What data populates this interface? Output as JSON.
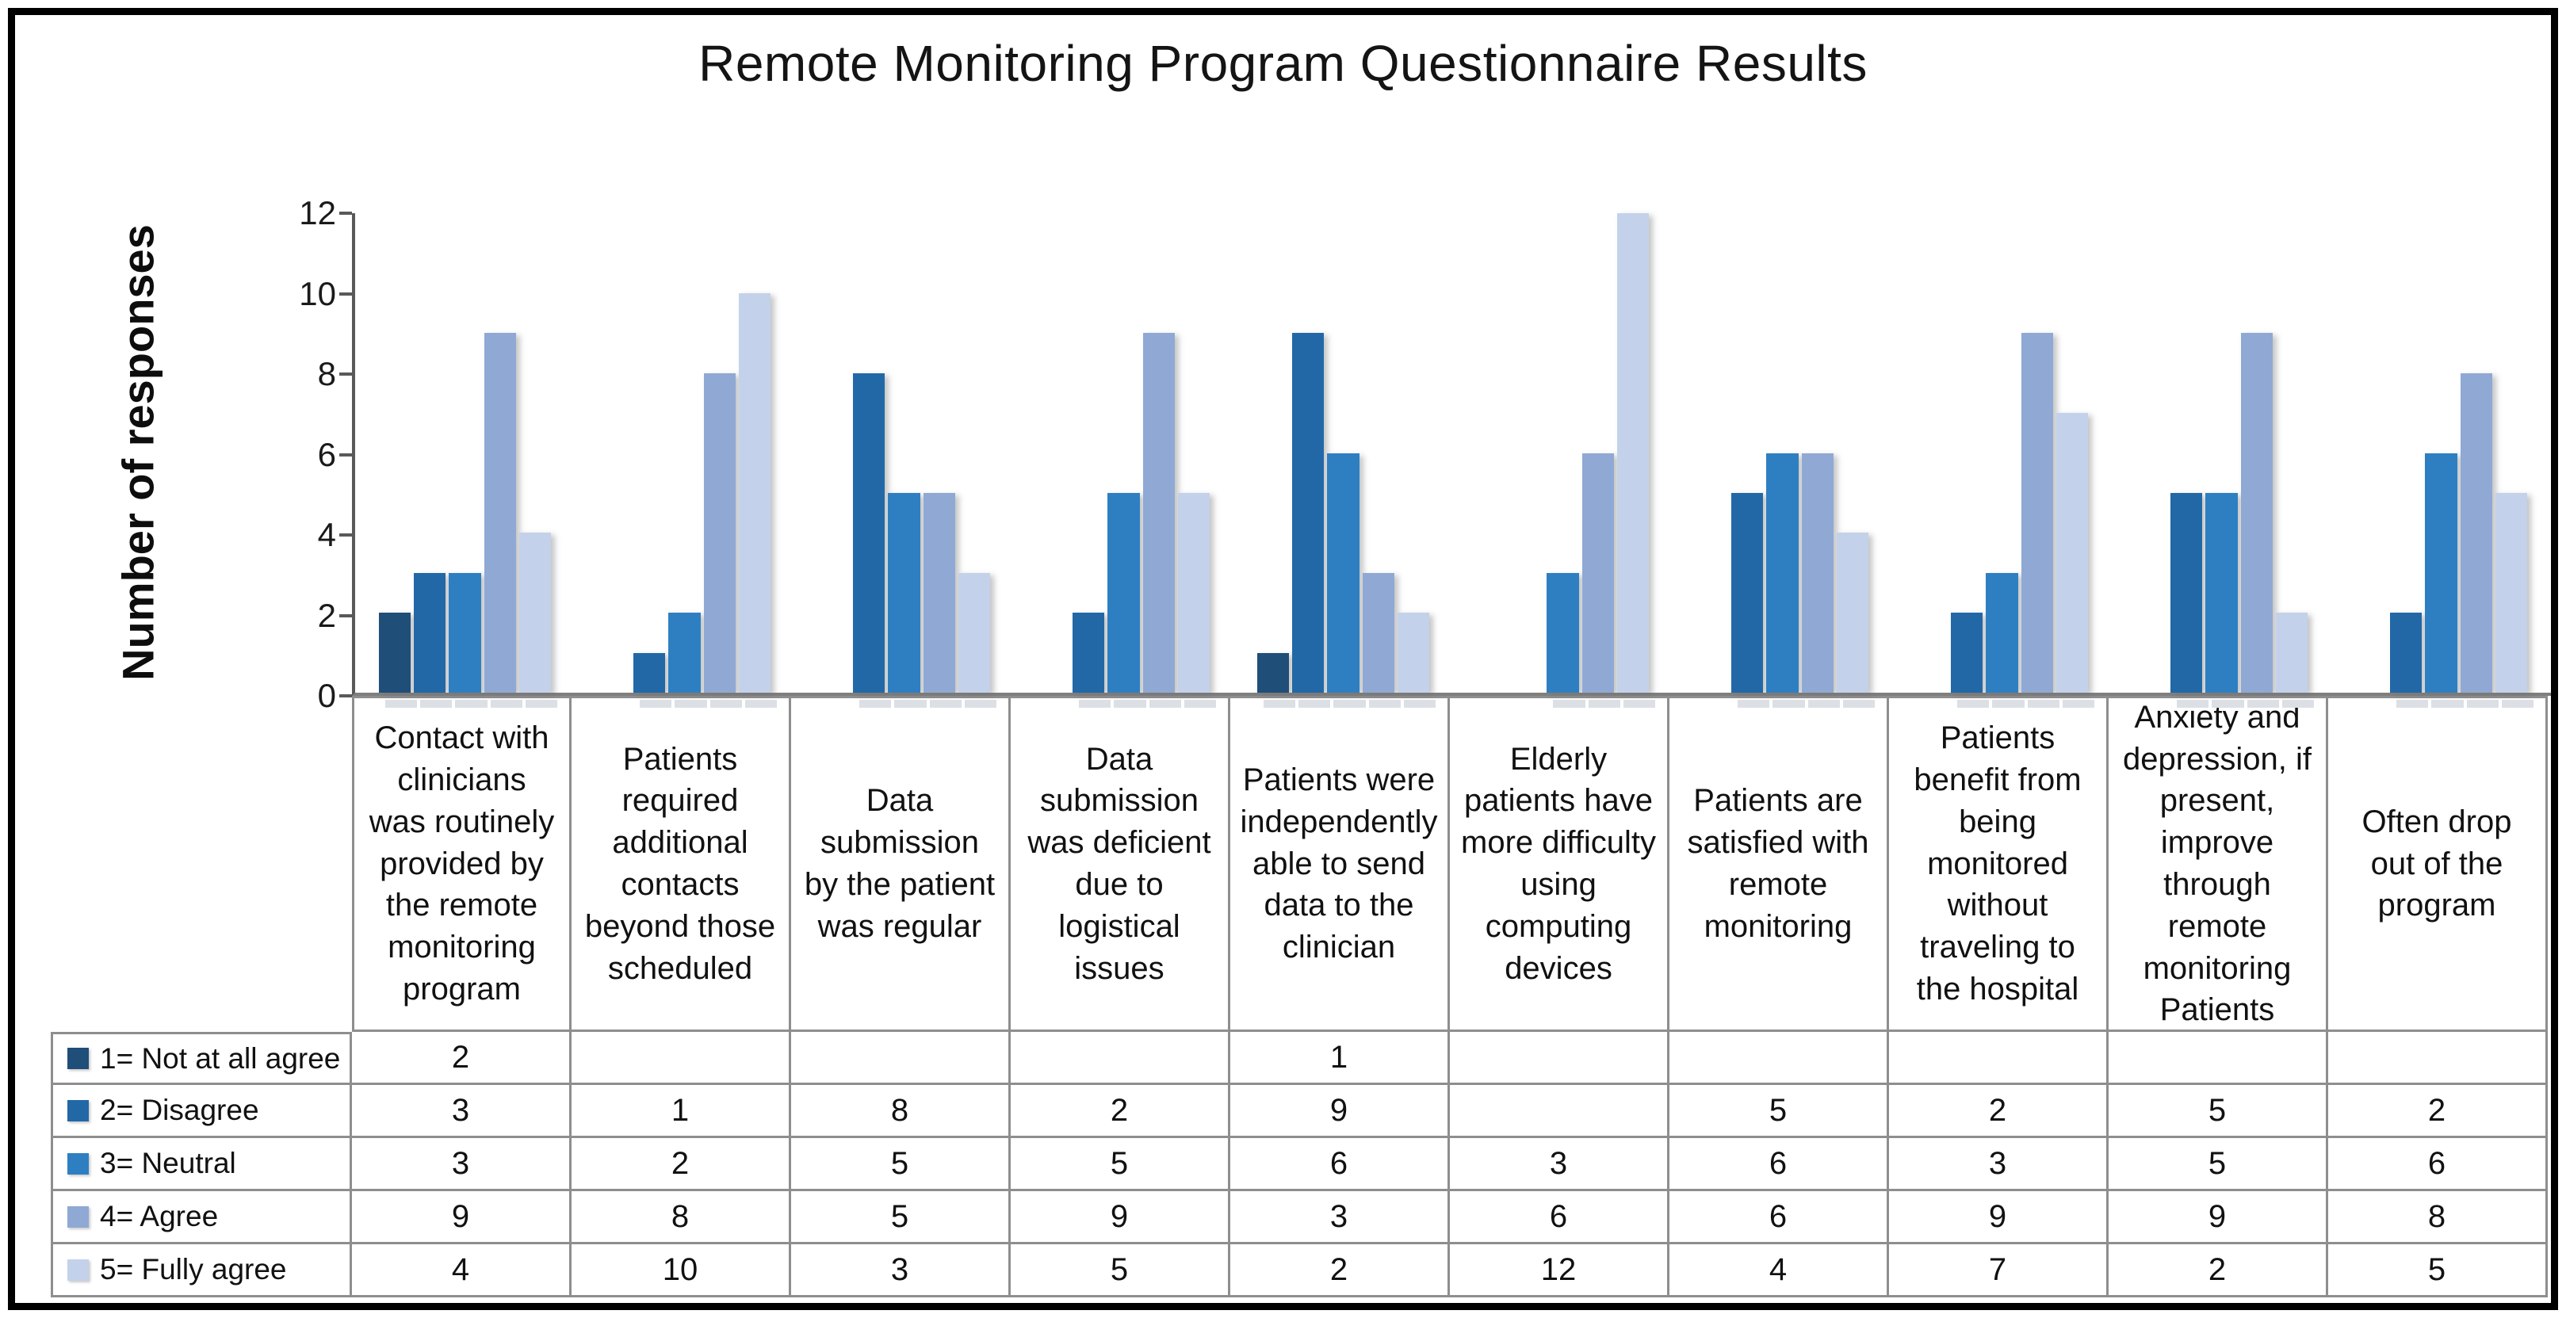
{
  "title": "Remote Monitoring Program Questionnaire Results",
  "chart_data": {
    "type": "bar",
    "title": "Remote Monitoring Program Questionnaire Results",
    "xlabel": "",
    "ylabel": "Number of responses",
    "ylim": [
      0,
      12
    ],
    "yticks": [
      0,
      2,
      4,
      6,
      8,
      10,
      12
    ],
    "grid": false,
    "legend_position": "table-rows-left",
    "categories": [
      "Contact with clinicians was routinely provided by the remote monitoring program",
      "Patients required additional contacts beyond those scheduled",
      "Data submission by the patient was regular",
      "Data submission was deficient due to logistical issues",
      "Patients were independently able to send data to the clinician",
      "Elderly patients have more difficulty using computing devices",
      "Patients are satisfied with remote monitoring",
      "Patients benefit from being monitored without traveling to the hospital",
      "Anxiety and depression, if present, improve through remote monitoring Patients",
      "Often drop out of the program"
    ],
    "series": [
      {
        "name": "1= Not at all agree",
        "color": "#1F4E79",
        "values": [
          2,
          null,
          null,
          null,
          1,
          null,
          null,
          null,
          null,
          null
        ]
      },
      {
        "name": "2= Disagree",
        "color": "#2268A7",
        "values": [
          3,
          1,
          8,
          2,
          9,
          null,
          5,
          2,
          5,
          2
        ]
      },
      {
        "name": "3= Neutral",
        "color": "#2E7FC2",
        "values": [
          3,
          2,
          5,
          5,
          6,
          3,
          6,
          3,
          5,
          6
        ]
      },
      {
        "name": "4= Agree",
        "color": "#8FA9D4",
        "values": [
          9,
          8,
          5,
          9,
          3,
          6,
          6,
          9,
          9,
          8
        ]
      },
      {
        "name": "5= Fully agree",
        "color": "#C3D2EA",
        "values": [
          4,
          10,
          3,
          5,
          2,
          12,
          4,
          7,
          2,
          5
        ]
      }
    ]
  },
  "style_colors": {
    "y_axis_line": "#595959",
    "x_axis_line": "#7f7f7f",
    "table_border": "#8e8e8e",
    "figure_border": "#000000"
  }
}
